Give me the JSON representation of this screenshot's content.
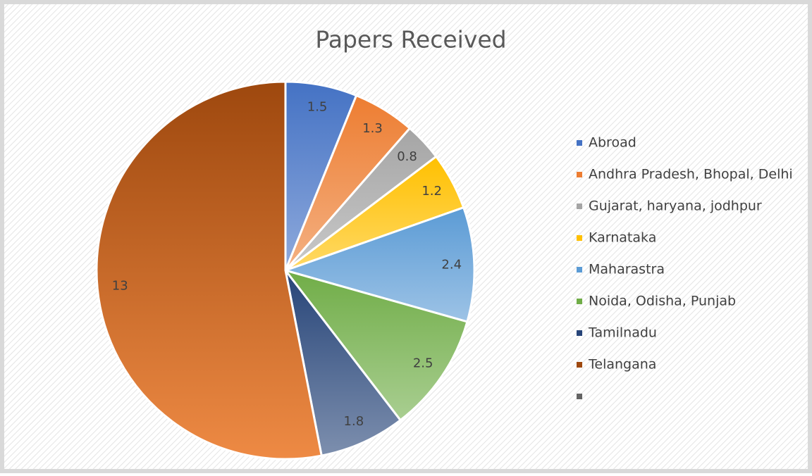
{
  "chart_data": {
    "type": "pie",
    "title": "Papers Received",
    "categories": [
      "Abroad",
      "Andhra Pradesh, Bhopal, Delhi",
      "Gujarat, haryana, jodhpur",
      "Karnataka",
      "Maharastra",
      "Noida, Odisha, Punjab",
      "Tamilnadu",
      "Telangana",
      null
    ],
    "values": [
      1.5,
      1.3,
      0.8,
      1.2,
      2.4,
      2.5,
      1.8,
      13,
      null
    ],
    "colors": [
      "#4472c4",
      "#ed7d31",
      "#a5a5a5",
      "#ffc000",
      "#5b9bd5",
      "#70ad47",
      "#264478",
      "#9e480e",
      "#636363"
    ],
    "legend": "right"
  }
}
